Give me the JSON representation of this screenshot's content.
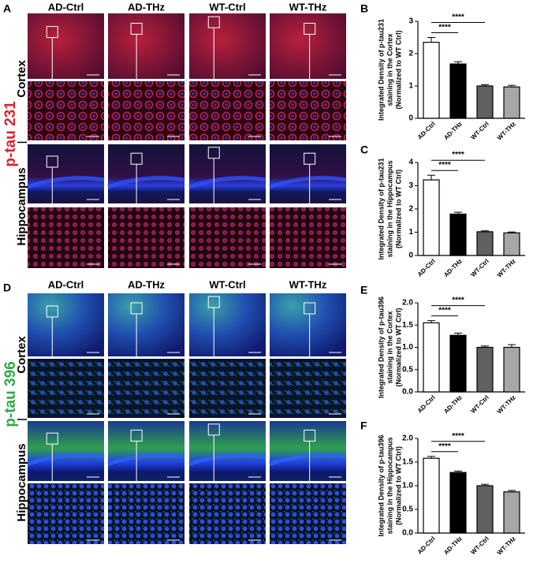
{
  "figure": {
    "panel_a": {
      "letter": "A",
      "columns": [
        "AD-Ctrl",
        "AD-THz",
        "WT-Ctrl",
        "WT-THz"
      ],
      "marker": "p-tau 231",
      "regions": [
        "Cortex",
        "Hippocampus"
      ]
    },
    "panel_d": {
      "letter": "D",
      "columns": [
        "AD-Ctrl",
        "AD-THz",
        "WT-Ctrl",
        "WT-THz"
      ],
      "marker": "p-tau 396",
      "regions": [
        "Cortex",
        "Hippocampus"
      ]
    }
  },
  "chart_data": [
    {
      "type": "bar",
      "panel": "B",
      "ylabel": [
        "Integrated Density of p-tau231",
        "staining in the Cortex",
        "(Normalized to WT Ctrl)"
      ],
      "categories": [
        "AD-Ctrl",
        "AD-THz",
        "WT-Ctrl",
        "WT-THz"
      ],
      "values": [
        2.35,
        1.68,
        1.0,
        0.97
      ],
      "errors": [
        0.15,
        0.07,
        0.04,
        0.05
      ],
      "colors": [
        "#ffffff",
        "#000000",
        "#606060",
        "#a6a6a6"
      ],
      "ylim": [
        0,
        3
      ],
      "yticks": [
        0,
        1,
        2,
        3
      ],
      "comparisons": [
        {
          "label": "****",
          "between": [
            0,
            1
          ]
        },
        {
          "label": "****",
          "between": [
            0,
            2
          ]
        }
      ]
    },
    {
      "type": "bar",
      "panel": "C",
      "ylabel": [
        "Integrated Density of p-tau231",
        "staining in the Hippocampus",
        "(Normalized to WT Ctrl)"
      ],
      "categories": [
        "AD-Ctrl",
        "AD-THz",
        "WT-Ctrl",
        "WT-THz"
      ],
      "values": [
        3.25,
        1.78,
        1.02,
        0.97
      ],
      "errors": [
        0.2,
        0.08,
        0.04,
        0.04
      ],
      "colors": [
        "#ffffff",
        "#000000",
        "#606060",
        "#a6a6a6"
      ],
      "ylim": [
        0,
        4
      ],
      "yticks": [
        0,
        1,
        2,
        3,
        4
      ],
      "comparisons": [
        {
          "label": "****",
          "between": [
            0,
            1
          ]
        },
        {
          "label": "****",
          "between": [
            0,
            2
          ]
        }
      ]
    },
    {
      "type": "bar",
      "panel": "E",
      "ylabel": [
        "Integrated Density of p-tau396",
        "staining in the Cortex",
        "(Normalized to WT Ctrl)"
      ],
      "categories": [
        "AD-Ctrl",
        "AD-THz",
        "WT-Ctrl",
        "WT-THz"
      ],
      "values": [
        1.55,
        1.27,
        1.0,
        1.0
      ],
      "errors": [
        0.05,
        0.05,
        0.03,
        0.06
      ],
      "colors": [
        "#ffffff",
        "#000000",
        "#606060",
        "#a6a6a6"
      ],
      "ylim": [
        0,
        2
      ],
      "yticks": [
        {
          "value": 0,
          "label": "0.0"
        },
        0.5,
        {
          "value": 1,
          "label": "1.0"
        },
        1.5,
        {
          "value": 2,
          "label": "2.0"
        }
      ],
      "comparisons": [
        {
          "label": "****",
          "between": [
            0,
            1
          ]
        },
        {
          "label": "****",
          "between": [
            0,
            2
          ]
        }
      ]
    },
    {
      "type": "bar",
      "panel": "F",
      "ylabel": [
        "Integrated Density of p-tau396",
        "staining in the Hippocampus",
        "(Normalized to WT Ctrl)"
      ],
      "categories": [
        "AD-Ctrl",
        "AD-THz",
        "WT-Ctrl",
        "WT-THz"
      ],
      "values": [
        1.58,
        1.28,
        1.0,
        0.87
      ],
      "errors": [
        0.04,
        0.03,
        0.03,
        0.03
      ],
      "colors": [
        "#ffffff",
        "#000000",
        "#606060",
        "#a6a6a6"
      ],
      "ylim": [
        0,
        2
      ],
      "yticks": [
        {
          "value": 0,
          "label": "0.0"
        },
        0.5,
        {
          "value": 1,
          "label": "1.0"
        },
        1.5,
        {
          "value": 2,
          "label": "2.0"
        }
      ],
      "comparisons": [
        {
          "label": "****",
          "between": [
            0,
            1
          ]
        },
        {
          "label": "****",
          "between": [
            0,
            2
          ]
        }
      ]
    }
  ]
}
